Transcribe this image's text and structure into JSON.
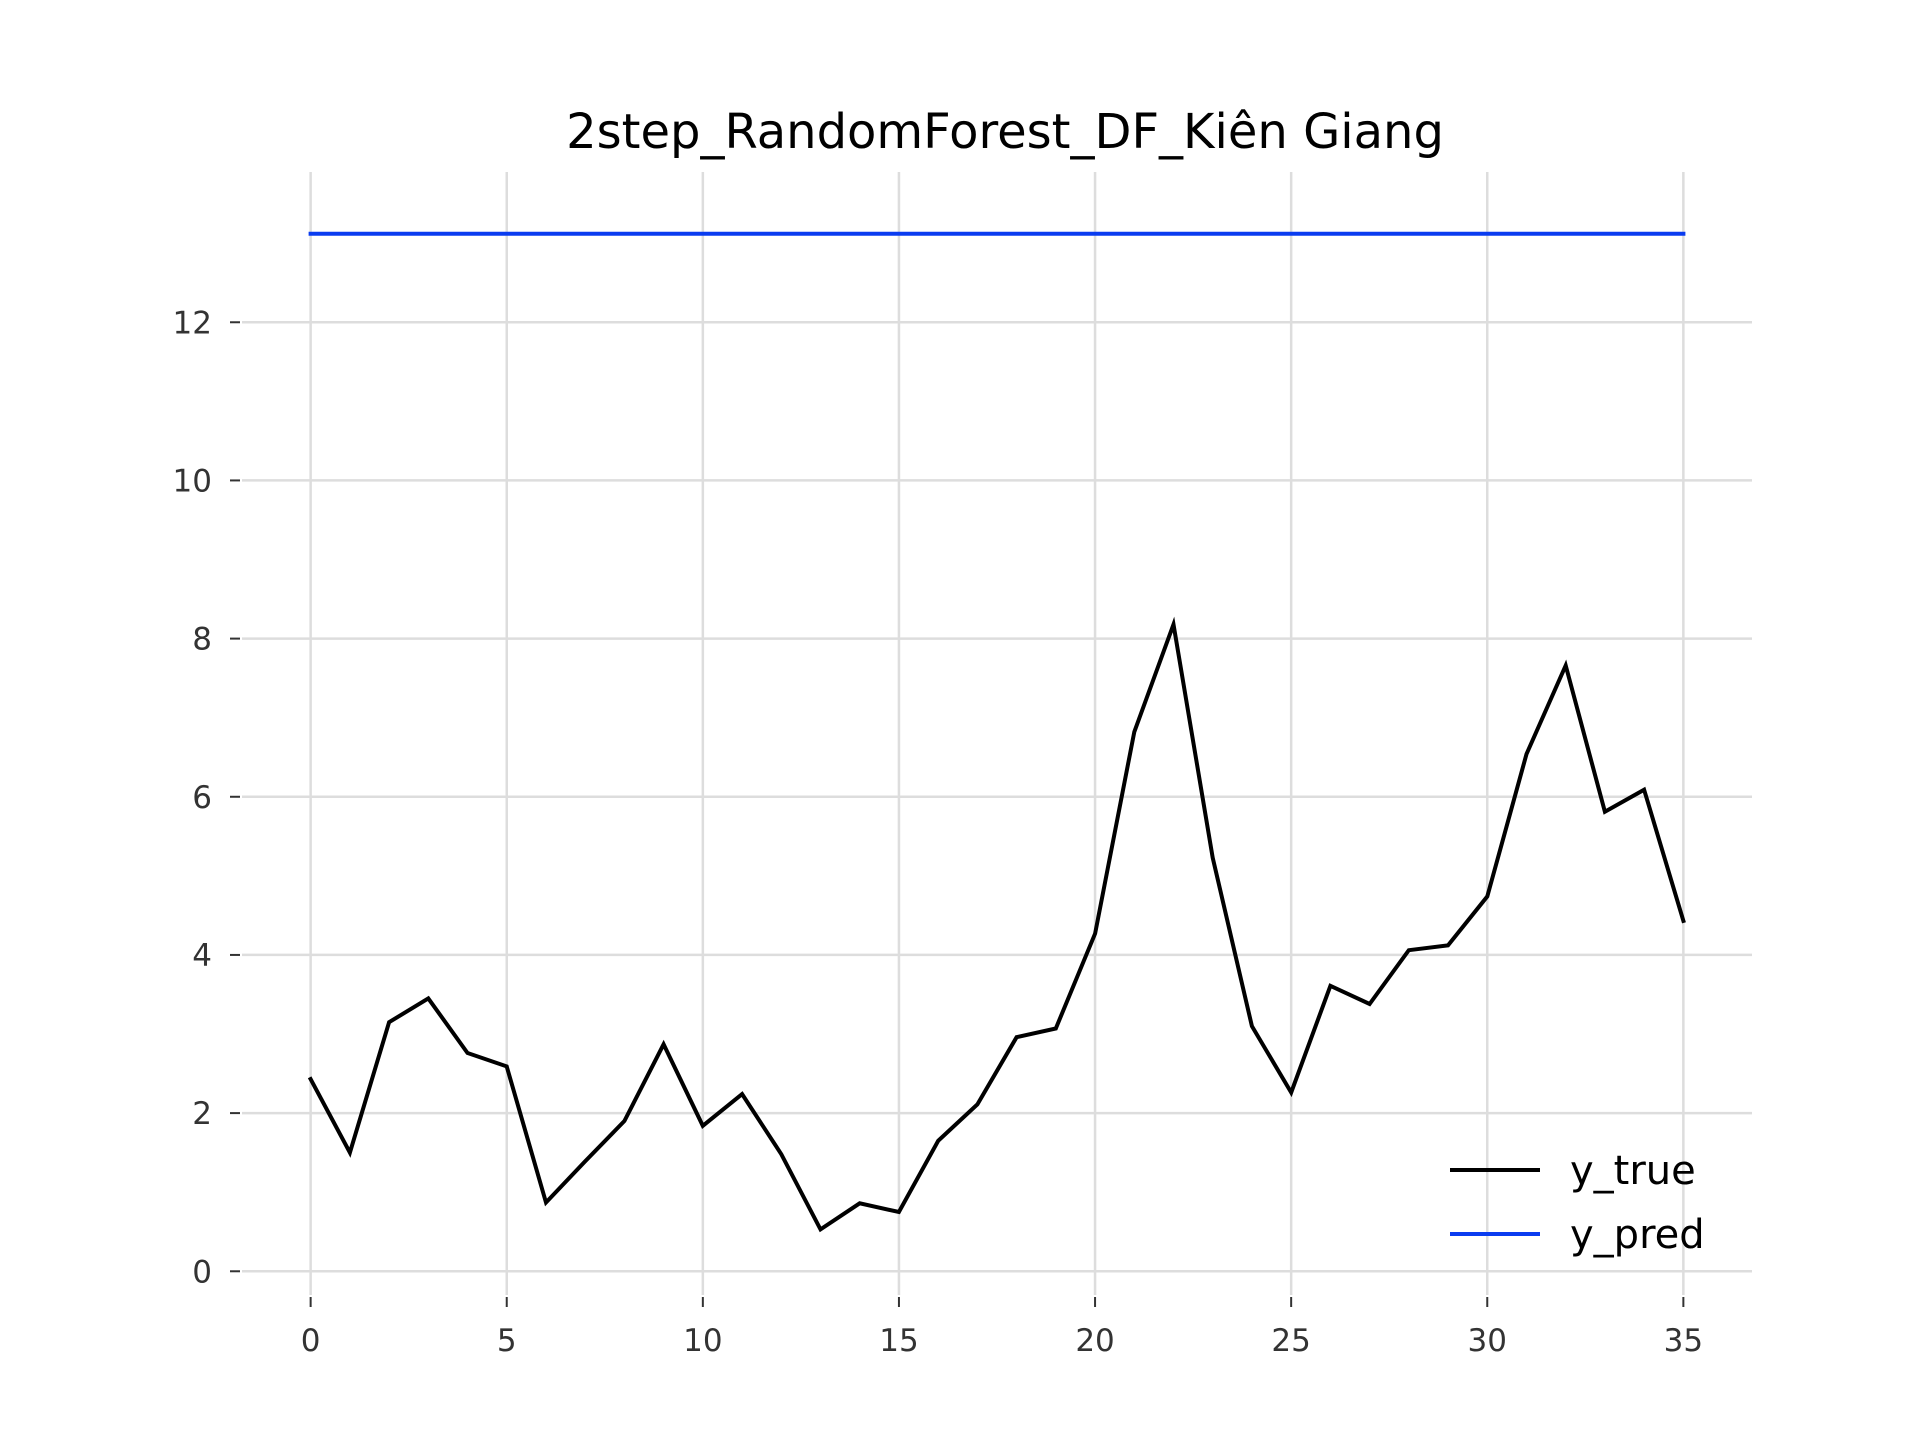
{
  "chart_data": {
    "type": "line",
    "title": "2step_RandomForest_DF_Kiên Giang",
    "xlabel": "",
    "ylabel": "",
    "xlim": [
      -1.75,
      36.75
    ],
    "ylim": [
      -0.3,
      13.9
    ],
    "xticks": [
      0,
      5,
      10,
      15,
      20,
      25,
      30,
      35
    ],
    "yticks": [
      0,
      2,
      4,
      6,
      8,
      10,
      12
    ],
    "grid": true,
    "legend_position": "lower-right",
    "series": [
      {
        "name": "y_true",
        "color": "#000000",
        "x": [
          0,
          1,
          2,
          3,
          4,
          5,
          6,
          7,
          8,
          9,
          10,
          11,
          12,
          13,
          14,
          15,
          16,
          17,
          18,
          19,
          20,
          21,
          22,
          23,
          24,
          25,
          26,
          27,
          28,
          29,
          30,
          31,
          32,
          33,
          34,
          35
        ],
        "values": [
          2.43,
          1.5,
          3.15,
          3.45,
          2.76,
          2.59,
          0.87,
          1.39,
          1.9,
          2.87,
          1.84,
          2.24,
          1.48,
          0.53,
          0.86,
          0.75,
          1.65,
          2.11,
          2.96,
          3.07,
          4.27,
          6.82,
          8.18,
          5.23,
          3.1,
          2.26,
          3.61,
          3.38,
          4.06,
          4.12,
          4.74,
          6.54,
          7.66,
          5.81,
          6.09,
          4.43
        ]
      },
      {
        "name": "y_pred",
        "color": "#0a3cf0",
        "x": [
          0,
          1,
          2,
          3,
          4,
          5,
          6,
          7,
          8,
          9,
          10,
          11,
          12,
          13,
          14,
          15,
          16,
          17,
          18,
          19,
          20,
          21,
          22,
          23,
          24,
          25,
          26,
          27,
          28,
          29,
          30,
          31,
          32,
          33,
          34,
          35
        ],
        "values": [
          13.12,
          13.12,
          13.12,
          13.12,
          13.12,
          13.12,
          13.12,
          13.12,
          13.12,
          13.12,
          13.12,
          13.12,
          13.12,
          13.12,
          13.12,
          13.12,
          13.12,
          13.12,
          13.12,
          13.12,
          13.12,
          13.12,
          13.12,
          13.12,
          13.12,
          13.12,
          13.12,
          13.12,
          13.12,
          13.12,
          13.12,
          13.12,
          13.12,
          13.12,
          13.12,
          13.12
        ]
      }
    ]
  }
}
